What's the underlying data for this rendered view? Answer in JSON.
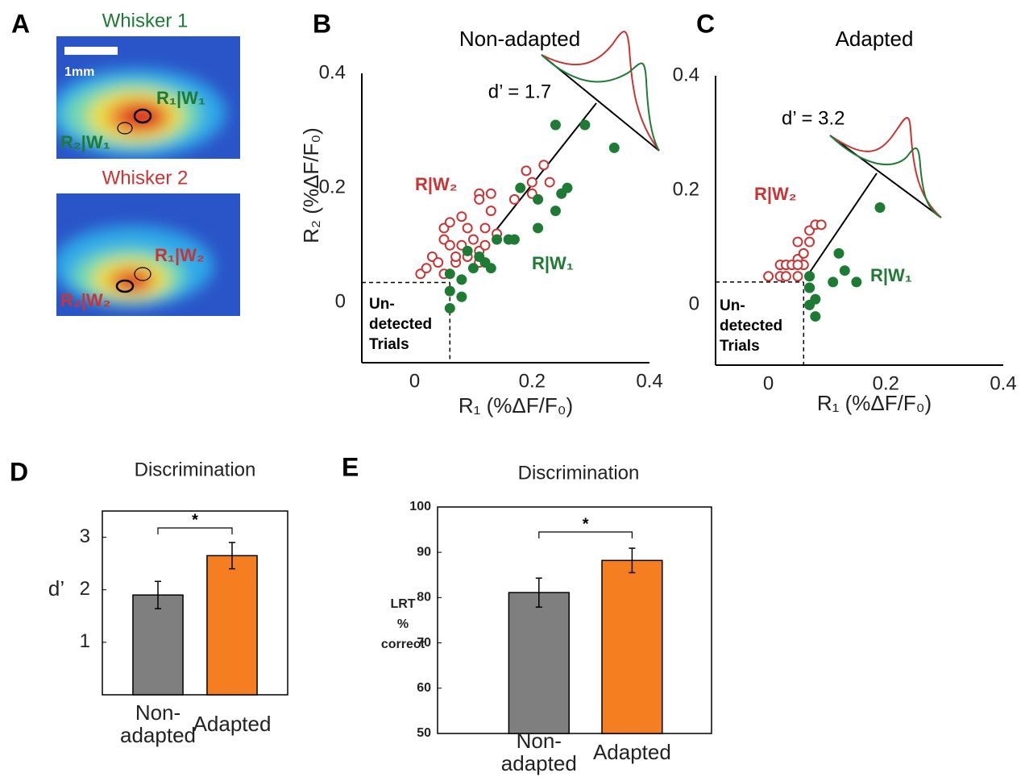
{
  "panel_labels": [
    "A",
    "B",
    "C",
    "D",
    "E"
  ],
  "whisker_images": [
    {
      "title": "Whisker 1",
      "scale_bar": "1mm",
      "labels": [
        "R₁|W₁",
        "R₂|W₁"
      ]
    },
    {
      "title": "Whisker 2",
      "labels": [
        "R₁|W₂",
        "R₂|W₂"
      ]
    }
  ],
  "chart_data": [
    {
      "type": "scatter",
      "title": "Non-adapted",
      "xlabel": "R₁ (%ΔF/F₀)",
      "ylabel": "R₂ (%ΔF/F₀)",
      "d_prime": "d’ = 1.7",
      "undetected": "Un-\ndetected\nTrials",
      "xlim": [
        -0.09,
        0.4
      ],
      "ylim": [
        -0.105,
        0.4
      ],
      "xticks": [
        0,
        0.2,
        0.4
      ],
      "yticks": [
        0,
        0.2,
        0.4
      ],
      "threshold": {
        "x": 0.06,
        "y": 0.035
      },
      "series": [
        {
          "name": "R|W₂",
          "color": "#cc3333",
          "filled": false,
          "x": [
            0.01,
            0.02,
            0.03,
            0.05,
            0.05,
            0.06,
            0.08,
            0.09,
            0.1,
            0.11,
            0.12,
            0.13,
            0.08,
            0.07,
            0.05,
            0.06,
            0.07,
            0.09,
            0.11,
            0.13,
            0.11,
            0.14,
            0.17,
            0.19,
            0.2,
            0.22,
            0.23,
            0.2,
            0.11,
            0.12,
            0.04
          ],
          "values": [
            0.05,
            0.06,
            0.08,
            0.11,
            0.13,
            0.14,
            0.15,
            0.13,
            0.11,
            0.09,
            0.13,
            0.16,
            0.1,
            0.07,
            0.05,
            0.1,
            0.08,
            0.08,
            0.19,
            0.19,
            0.18,
            0.12,
            0.18,
            0.23,
            0.21,
            0.24,
            0.21,
            0.19,
            0.07,
            0.1,
            0.07
          ]
        },
        {
          "name": "R|W₁",
          "color": "#1e7b34",
          "filled": true,
          "x": [
            0.06,
            0.06,
            0.08,
            0.08,
            0.09,
            0.1,
            0.12,
            0.13,
            0.14,
            0.16,
            0.17,
            0.18,
            0.21,
            0.24,
            0.25,
            0.26,
            0.24,
            0.29,
            0.34,
            0.21,
            0.06,
            0.11
          ],
          "values": [
            -0.01,
            0.02,
            0.01,
            0.04,
            0.09,
            0.06,
            0.07,
            0.06,
            0.11,
            0.11,
            0.11,
            0.2,
            0.13,
            0.16,
            0.19,
            0.2,
            0.31,
            0.31,
            0.27,
            0.18,
            0.05,
            0.08
          ]
        }
      ]
    },
    {
      "type": "scatter",
      "title": "Adapted",
      "xlabel": "R₁ (%ΔF/F₀)",
      "d_prime": "d’ = 3.2",
      "undetected": "Un-\ndetected\nTrials",
      "xlim": [
        -0.09,
        0.4
      ],
      "ylim": [
        -0.105,
        0.4
      ],
      "xticks": [
        0,
        0.2,
        0.4
      ],
      "yticks": [
        0,
        0.2,
        0.4
      ],
      "threshold": {
        "x": 0.06,
        "y": 0.04
      },
      "series": [
        {
          "name": "R|W₂",
          "color": "#cc3333",
          "filled": false,
          "x": [
            0.0,
            0.02,
            0.02,
            0.03,
            0.04,
            0.05,
            0.05,
            0.06,
            0.06,
            0.05,
            0.07,
            0.08,
            0.09,
            0.07,
            0.03,
            0.05
          ],
          "values": [
            0.05,
            0.05,
            0.07,
            0.07,
            0.07,
            0.05,
            0.08,
            0.07,
            0.09,
            0.11,
            0.13,
            0.14,
            0.14,
            0.11,
            0.05,
            0.07
          ]
        },
        {
          "name": "R|W₁",
          "color": "#1e7b34",
          "filled": true,
          "x": [
            0.07,
            0.07,
            0.07,
            0.07,
            0.08,
            0.08,
            0.11,
            0.12,
            0.13,
            0.15,
            0.19,
            0.07
          ],
          "values": [
            0.05,
            0.05,
            0.03,
            0.0,
            -0.02,
            0.01,
            0.04,
            0.09,
            0.06,
            0.04,
            0.17,
            0.03
          ]
        }
      ]
    },
    {
      "type": "bar",
      "title": "Discrimination",
      "ylabel": "d’",
      "categories": [
        "Non-\nadapted",
        "Adapted"
      ],
      "values": [
        1.9,
        2.65
      ],
      "errors": [
        0.26,
        0.25
      ],
      "colors": [
        "#7f7f7f",
        "#f57f20"
      ],
      "ylim": [
        0,
        3.5
      ],
      "yticks": [
        1,
        2,
        3
      ],
      "significance": "*"
    },
    {
      "type": "bar",
      "title": "Discrimination",
      "ylabel": "LRT\n%\ncorrect",
      "categories": [
        "Non-\nadapted",
        "Adapted"
      ],
      "values": [
        81.1,
        88.2
      ],
      "errors": [
        3.2,
        2.7
      ],
      "colors": [
        "#7f7f7f",
        "#f57f20"
      ],
      "ylim": [
        50,
        100
      ],
      "yticks": [
        50,
        60,
        70,
        80,
        90,
        100
      ],
      "significance": "*"
    }
  ]
}
